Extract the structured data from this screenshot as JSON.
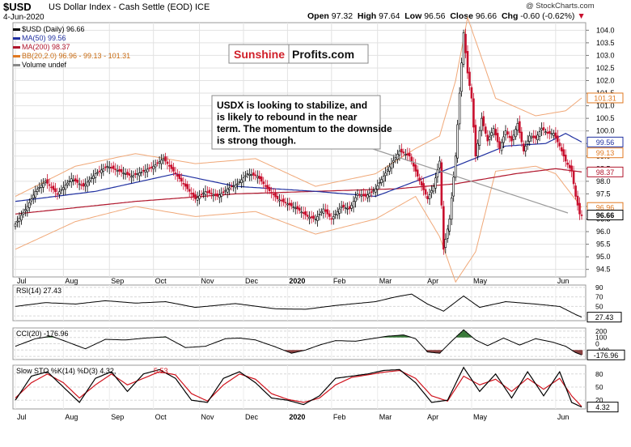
{
  "header": {
    "symbol": "$USD",
    "description": "US Dollar Index - Cash Settle (EOD)  ICE",
    "date": "4-Jun-2020",
    "open_label": "Open",
    "open": "97.32",
    "high_label": "High",
    "high": "97.64",
    "low_label": "Low",
    "low": "96.56",
    "close_label": "Close",
    "close": "96.66",
    "chg_label": "Chg",
    "chg": "-0.60 (-0.62%)",
    "copyright": "@ StockCharts.com"
  },
  "legend": [
    {
      "label": "$USD (Daily) 96.66",
      "color": "#000000"
    },
    {
      "label": "MA(50) 99.56",
      "color": "#1f2fa0"
    },
    {
      "label": "MA(200) 98.37",
      "color": "#b0162c"
    },
    {
      "label": "BB(20,2.0) 96.96 - 99.13 - 101.31",
      "color": "#e07820"
    },
    {
      "label": "Volume undef",
      "color": "#888888"
    }
  ],
  "colors": {
    "up": "#000000",
    "down": "#c8102e",
    "ma50": "#1f2fa0",
    "ma200": "#b0162c",
    "bb": "#f0a878",
    "rsi": "#000000",
    "stoch_k": "#000000",
    "stoch_d": "#d0141e",
    "cci_pos": "#3b7a3b",
    "cci_neg": "#8a4040"
  },
  "watermark": {
    "part1": "Sunshine",
    "part2": "Profits.com"
  },
  "annotation": "USDX is looking to stabilize, and is likely to rebound in the near term. The momentum to the downside is strong though.",
  "chart_data": [
    {
      "type": "candlestick",
      "title": "$USD US Dollar Index - Cash Settle (EOD)",
      "months": [
        "Jul",
        "Aug",
        "Sep",
        "Oct",
        "Nov",
        "Dec",
        "2020",
        "Feb",
        "Mar",
        "Apr",
        "May",
        "Jun"
      ],
      "ylim": [
        94.2,
        104.3
      ],
      "yticks": [
        "94.5",
        "95.0",
        "95.5",
        "96.0",
        "96.5",
        "97.0",
        "97.5",
        "98.0",
        "98.5",
        "99.0",
        "99.5",
        "100.0",
        "100.5",
        "101.0",
        "101.5",
        "102.0",
        "102.5",
        "103.0",
        "103.5",
        "104.0"
      ],
      "close_anchors": [
        [
          0,
          96.3
        ],
        [
          6,
          97.0
        ],
        [
          10,
          97.6
        ],
        [
          15,
          98.0
        ],
        [
          21,
          97.5
        ],
        [
          28,
          98.1
        ],
        [
          34,
          97.8
        ],
        [
          40,
          98.3
        ],
        [
          46,
          98.6
        ],
        [
          52,
          98.4
        ],
        [
          58,
          98.2
        ],
        [
          64,
          98.4
        ],
        [
          69,
          98.6
        ],
        [
          74,
          98.9
        ],
        [
          79,
          98.4
        ],
        [
          85,
          97.8
        ],
        [
          90,
          97.3
        ],
        [
          95,
          97.6
        ],
        [
          101,
          97.4
        ],
        [
          106,
          97.7
        ],
        [
          111,
          97.9
        ],
        [
          116,
          98.3
        ],
        [
          121,
          98.2
        ],
        [
          126,
          97.7
        ],
        [
          131,
          97.3
        ],
        [
          136,
          97.1
        ],
        [
          141,
          96.9
        ],
        [
          146,
          96.6
        ],
        [
          150,
          96.5
        ],
        [
          154,
          96.9
        ],
        [
          158,
          96.5
        ],
        [
          163,
          97.0
        ],
        [
          167,
          96.9
        ],
        [
          171,
          97.5
        ],
        [
          175,
          97.4
        ],
        [
          180,
          97.7
        ],
        [
          184,
          98.2
        ],
        [
          188,
          98.7
        ],
        [
          192,
          99.2
        ],
        [
          197,
          99.0
        ],
        [
          201,
          98.2
        ],
        [
          206,
          97.3
        ],
        [
          209,
          97.8
        ],
        [
          212,
          98.8
        ],
        [
          214,
          95.3
        ],
        [
          217,
          96.5
        ],
        [
          220,
          99.0
        ],
        [
          222,
          101.5
        ],
        [
          224,
          103.9
        ],
        [
          226,
          102.3
        ],
        [
          228,
          101.3
        ],
        [
          230,
          99.0
        ],
        [
          233,
          100.5
        ],
        [
          236,
          99.6
        ],
        [
          239,
          100.1
        ],
        [
          242,
          99.3
        ],
        [
          245,
          100.0
        ],
        [
          248,
          99.6
        ],
        [
          251,
          100.3
        ],
        [
          254,
          99.2
        ],
        [
          257,
          99.8
        ],
        [
          260,
          99.7
        ],
        [
          263,
          100.1
        ],
        [
          266,
          99.9
        ],
        [
          269,
          99.9
        ],
        [
          272,
          99.4
        ],
        [
          275,
          98.8
        ],
        [
          278,
          98.4
        ],
        [
          280,
          97.4
        ],
        [
          282,
          96.7
        ],
        [
          283,
          96.66
        ]
      ],
      "ma50_anchors": [
        [
          0,
          97.2
        ],
        [
          40,
          97.6
        ],
        [
          80,
          98.3
        ],
        [
          110,
          97.8
        ],
        [
          150,
          97.6
        ],
        [
          180,
          97.4
        ],
        [
          200,
          98.0
        ],
        [
          220,
          98.6
        ],
        [
          245,
          99.4
        ],
        [
          265,
          99.5
        ],
        [
          275,
          99.9
        ],
        [
          283,
          99.56
        ]
      ],
      "ma200_anchors": [
        [
          0,
          96.7
        ],
        [
          60,
          97.2
        ],
        [
          110,
          97.5
        ],
        [
          150,
          97.6
        ],
        [
          190,
          97.7
        ],
        [
          220,
          97.9
        ],
        [
          250,
          98.3
        ],
        [
          270,
          98.5
        ],
        [
          283,
          98.37
        ]
      ],
      "bb_upper_anchors": [
        [
          0,
          97.4
        ],
        [
          30,
          98.6
        ],
        [
          60,
          99.1
        ],
        [
          90,
          98.7
        ],
        [
          120,
          98.9
        ],
        [
          150,
          97.8
        ],
        [
          180,
          98.3
        ],
        [
          200,
          99.3
        ],
        [
          212,
          99.8
        ],
        [
          220,
          102.0
        ],
        [
          226,
          104.5
        ],
        [
          240,
          101.3
        ],
        [
          260,
          100.6
        ],
        [
          275,
          100.8
        ],
        [
          283,
          101.31
        ]
      ],
      "bb_lower_anchors": [
        [
          0,
          95.3
        ],
        [
          30,
          96.4
        ],
        [
          60,
          97.0
        ],
        [
          90,
          96.6
        ],
        [
          120,
          96.8
        ],
        [
          150,
          95.9
        ],
        [
          180,
          96.5
        ],
        [
          200,
          97.4
        ],
        [
          212,
          95.8
        ],
        [
          220,
          94.0
        ],
        [
          230,
          95.2
        ],
        [
          240,
          98.4
        ],
        [
          260,
          98.6
        ],
        [
          270,
          98.3
        ],
        [
          283,
          96.96
        ]
      ],
      "price_labels": [
        {
          "value": 101.31,
          "label": "101.31",
          "color": "#e07820"
        },
        {
          "value": 99.56,
          "label": "99.56",
          "color": "#1f2fa0"
        },
        {
          "value": 99.13,
          "label": "99.13",
          "color": "#e07820"
        },
        {
          "value": 98.37,
          "label": "98.37",
          "color": "#b0162c"
        },
        {
          "value": 96.96,
          "label": "96.96",
          "color": "#e07820"
        },
        {
          "value": 96.66,
          "label": "96.66",
          "color": "#000000"
        }
      ]
    },
    {
      "type": "line",
      "title": "RSI(14) 27.43",
      "ylim": [
        20,
        95
      ],
      "yticks": [
        "90",
        "70",
        "50",
        "30"
      ],
      "value_label": "27.43",
      "anchors": [
        [
          0,
          50
        ],
        [
          15,
          58
        ],
        [
          30,
          55
        ],
        [
          45,
          62
        ],
        [
          60,
          57
        ],
        [
          75,
          60
        ],
        [
          90,
          48
        ],
        [
          110,
          56
        ],
        [
          130,
          45
        ],
        [
          145,
          44
        ],
        [
          160,
          52
        ],
        [
          180,
          60
        ],
        [
          190,
          70
        ],
        [
          198,
          76
        ],
        [
          206,
          55
        ],
        [
          214,
          40
        ],
        [
          224,
          72
        ],
        [
          232,
          48
        ],
        [
          245,
          60
        ],
        [
          260,
          55
        ],
        [
          272,
          50
        ],
        [
          280,
          33
        ],
        [
          283,
          27.43
        ]
      ]
    },
    {
      "type": "area",
      "title": "CCI(20) -176.96",
      "ylim": [
        -250,
        250
      ],
      "yticks": [
        "200",
        "100",
        "0",
        "-100",
        "-200"
      ],
      "value_label": "-176.96",
      "anchors": [
        [
          0,
          -40
        ],
        [
          10,
          80
        ],
        [
          18,
          120
        ],
        [
          25,
          40
        ],
        [
          35,
          -80
        ],
        [
          45,
          70
        ],
        [
          55,
          60
        ],
        [
          65,
          90
        ],
        [
          75,
          110
        ],
        [
          85,
          -60
        ],
        [
          95,
          -40
        ],
        [
          105,
          80
        ],
        [
          112,
          90
        ],
        [
          120,
          60
        ],
        [
          130,
          -50
        ],
        [
          138,
          -150
        ],
        [
          145,
          -100
        ],
        [
          152,
          -20
        ],
        [
          160,
          50
        ],
        [
          170,
          40
        ],
        [
          178,
          80
        ],
        [
          186,
          120
        ],
        [
          194,
          140
        ],
        [
          200,
          80
        ],
        [
          206,
          -130
        ],
        [
          212,
          -150
        ],
        [
          218,
          40
        ],
        [
          224,
          220
        ],
        [
          230,
          60
        ],
        [
          236,
          -30
        ],
        [
          244,
          90
        ],
        [
          252,
          -20
        ],
        [
          260,
          80
        ],
        [
          268,
          30
        ],
        [
          275,
          -40
        ],
        [
          280,
          -140
        ],
        [
          283,
          -176.96
        ]
      ]
    },
    {
      "type": "line",
      "title": "Slow STO %K(14) %D(3)",
      "title_prefix": "Slow STO %K(14) %D(3) 4.32,",
      "d_value": "5.53",
      "ylim": [
        0,
        100
      ],
      "yticks": [
        "80",
        "50",
        "20"
      ],
      "value_label": "4.32",
      "k_anchors": [
        [
          0,
          20
        ],
        [
          8,
          75
        ],
        [
          16,
          85
        ],
        [
          24,
          50
        ],
        [
          32,
          15
        ],
        [
          40,
          70
        ],
        [
          48,
          85
        ],
        [
          56,
          40
        ],
        [
          64,
          80
        ],
        [
          72,
          90
        ],
        [
          80,
          70
        ],
        [
          88,
          20
        ],
        [
          96,
          15
        ],
        [
          104,
          70
        ],
        [
          112,
          85
        ],
        [
          120,
          60
        ],
        [
          128,
          25
        ],
        [
          136,
          20
        ],
        [
          144,
          10
        ],
        [
          152,
          30
        ],
        [
          160,
          70
        ],
        [
          168,
          75
        ],
        [
          176,
          80
        ],
        [
          184,
          88
        ],
        [
          192,
          90
        ],
        [
          200,
          60
        ],
        [
          208,
          15
        ],
        [
          216,
          20
        ],
        [
          224,
          95
        ],
        [
          232,
          40
        ],
        [
          240,
          80
        ],
        [
          248,
          25
        ],
        [
          256,
          85
        ],
        [
          264,
          30
        ],
        [
          272,
          85
        ],
        [
          278,
          15
        ],
        [
          283,
          4.32
        ]
      ],
      "d_anchors": [
        [
          0,
          25
        ],
        [
          8,
          60
        ],
        [
          16,
          80
        ],
        [
          24,
          60
        ],
        [
          32,
          25
        ],
        [
          40,
          55
        ],
        [
          48,
          80
        ],
        [
          56,
          55
        ],
        [
          64,
          70
        ],
        [
          72,
          85
        ],
        [
          80,
          78
        ],
        [
          88,
          35
        ],
        [
          96,
          18
        ],
        [
          104,
          55
        ],
        [
          112,
          80
        ],
        [
          120,
          68
        ],
        [
          128,
          35
        ],
        [
          136,
          22
        ],
        [
          144,
          15
        ],
        [
          152,
          25
        ],
        [
          160,
          55
        ],
        [
          168,
          72
        ],
        [
          176,
          78
        ],
        [
          184,
          84
        ],
        [
          192,
          88
        ],
        [
          200,
          70
        ],
        [
          208,
          30
        ],
        [
          216,
          18
        ],
        [
          224,
          75
        ],
        [
          232,
          55
        ],
        [
          240,
          68
        ],
        [
          248,
          40
        ],
        [
          256,
          70
        ],
        [
          264,
          45
        ],
        [
          272,
          70
        ],
        [
          278,
          30
        ],
        [
          283,
          5.53
        ]
      ]
    }
  ]
}
